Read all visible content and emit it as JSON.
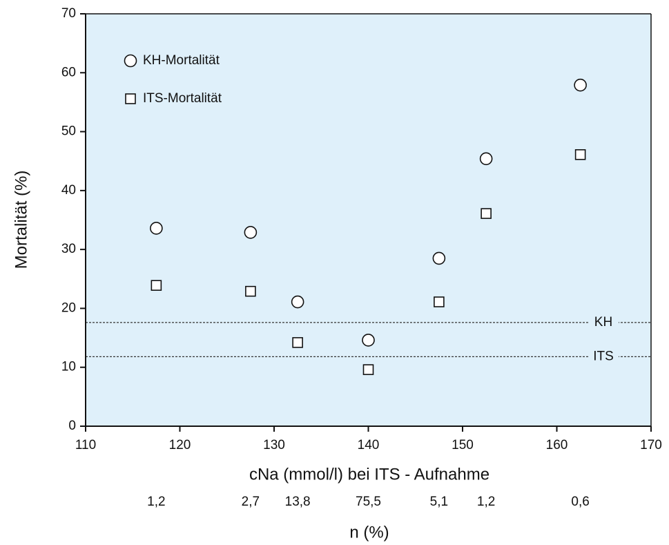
{
  "chart_data": {
    "type": "scatter",
    "xlabel": "cNa (mmol/l) bei ITS - Aufnahme",
    "ylabel": "Mortalität (%)",
    "x": [
      117.5,
      127.5,
      132.5,
      140,
      147.5,
      152.5,
      162.5
    ],
    "series": [
      {
        "name": "KH-Mortalität",
        "marker": "circle",
        "color": "#111111",
        "values": [
          33.6,
          32.9,
          21.1,
          14.6,
          28.5,
          45.4,
          57.9
        ]
      },
      {
        "name": "ITS-Mortalität",
        "marker": "square",
        "color": "#111111",
        "values": [
          23.9,
          22.9,
          14.2,
          9.6,
          21.1,
          36.1,
          46.1
        ]
      }
    ],
    "reference_lines": [
      {
        "label": "KH",
        "value": 17.6
      },
      {
        "label": "ITS",
        "value": 11.8
      }
    ],
    "secondary_xlabel": "n (%)",
    "secondary_labels": [
      "1,2",
      "2,7",
      "13,8",
      "75,5",
      "5,1",
      "1,2",
      "0,6"
    ],
    "xlim": [
      110,
      170
    ],
    "xticks": [
      110,
      120,
      130,
      140,
      150,
      160,
      170
    ],
    "ylim": [
      0,
      70
    ],
    "yticks": [
      0,
      10,
      20,
      30,
      40,
      50,
      60,
      70
    ],
    "grid": false,
    "background": "#dff0fa",
    "legend": "upper left"
  }
}
